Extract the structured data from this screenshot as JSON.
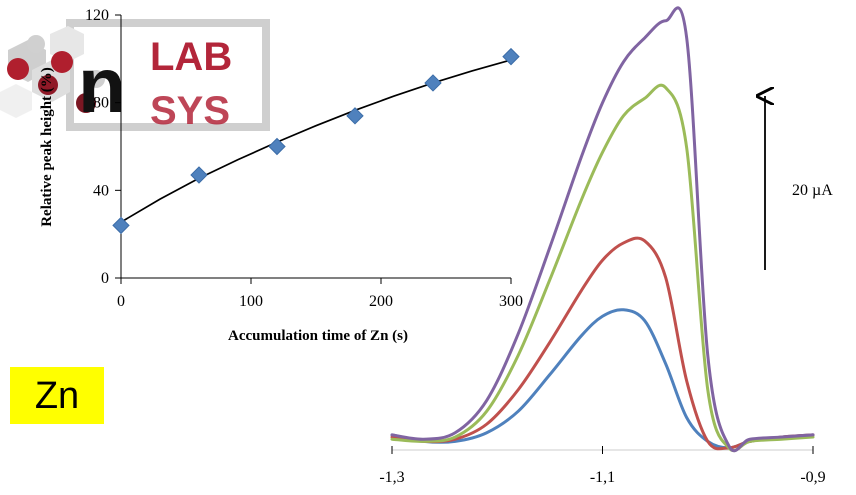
{
  "chart_data": [
    {
      "type": "scatter",
      "title": "",
      "xlabel": "Accumulation time of Zn (s)",
      "ylabel": "Relative peak height (%)",
      "xlim": [
        0,
        300
      ],
      "ylim": [
        0,
        120
      ],
      "x_ticks": [
        "0",
        "100",
        "200",
        "300"
      ],
      "y_ticks": [
        "0",
        "40",
        "80",
        "120"
      ],
      "marker": "diamond",
      "marker_color": "#4f81bd",
      "trendline": true,
      "trendline_color": "#000000",
      "series": [
        {
          "x": [
            0,
            60,
            120,
            180,
            240,
            300
          ],
          "y": [
            24,
            47,
            60,
            74,
            89,
            101
          ]
        }
      ],
      "trendline_points": {
        "x": [
          0,
          30,
          60,
          90,
          120,
          150,
          180,
          210,
          240,
          270,
          300
        ],
        "y": [
          25.5,
          36,
          45.5,
          54,
          62,
          69.5,
          76.5,
          83,
          89,
          94.5,
          99.5
        ]
      },
      "grid": false,
      "legend": "none"
    },
    {
      "type": "line",
      "title": "",
      "xlabel": "",
      "ylabel": "",
      "x_ticks": [
        "-1,3",
        "-1,1",
        "-0,9"
      ],
      "xlim": [
        -1.3,
        -0.9
      ],
      "ylim": [
        -2,
        100
      ],
      "grid": false,
      "legend": "none",
      "series": [
        {
          "color": "#4f81bd",
          "x": [
            -1.3,
            -1.27,
            -1.24,
            -1.21,
            -1.18,
            -1.15,
            -1.12,
            -1.1,
            -1.08,
            -1.06,
            -1.04,
            -1.02,
            -1.0,
            -0.98,
            -0.96,
            -0.93,
            -0.9
          ],
          "y": [
            1.5,
            0.0,
            0.0,
            2.0,
            7.0,
            15.5,
            24.5,
            29.0,
            30.5,
            28.0,
            18.0,
            5.5,
            0.0,
            -1.5,
            0.0,
            1.0,
            1.5
          ]
        },
        {
          "color": "#c0504d",
          "x": [
            -1.3,
            -1.27,
            -1.24,
            -1.21,
            -1.18,
            -1.15,
            -1.12,
            -1.1,
            -1.08,
            -1.06,
            -1.04,
            -1.02,
            -1.0,
            -0.98,
            -0.96,
            -0.93,
            -0.9
          ],
          "y": [
            1.0,
            0.0,
            0.5,
            4.0,
            12.0,
            23.0,
            35.0,
            42.0,
            46.0,
            46.5,
            38.0,
            14.0,
            0.0,
            -1.5,
            0.0,
            1.0,
            1.5
          ]
        },
        {
          "color": "#9bbb59",
          "x": [
            -1.3,
            -1.27,
            -1.24,
            -1.21,
            -1.18,
            -1.15,
            -1.12,
            -1.1,
            -1.08,
            -1.06,
            -1.04,
            -1.02,
            -1.0,
            -0.98,
            -0.96,
            -0.93,
            -0.9
          ],
          "y": [
            0.5,
            0.0,
            1.0,
            7.0,
            20.0,
            37.5,
            56.0,
            67.0,
            75.5,
            79.5,
            82.0,
            68.0,
            12.0,
            -1.5,
            0.0,
            0.5,
            1.0
          ]
        },
        {
          "color": "#8064a2",
          "x": [
            -1.3,
            -1.27,
            -1.24,
            -1.21,
            -1.18,
            -1.15,
            -1.12,
            -1.1,
            -1.08,
            -1.06,
            -1.04,
            -1.02,
            -1.0,
            -0.98,
            -0.96,
            -0.93,
            -0.9
          ],
          "y": [
            1.5,
            0.5,
            2.0,
            9.5,
            25.0,
            45.0,
            66.0,
            78.5,
            88.0,
            93.5,
            97.5,
            93.5,
            20.0,
            -1.0,
            0.5,
            1.0,
            1.5
          ]
        }
      ]
    }
  ],
  "annotations": {
    "scale_bar_label": "20 µA",
    "element_label": "Zn"
  },
  "logo": {
    "mark": "n",
    "top_text": "LAB",
    "bottom_text": "SYS"
  }
}
